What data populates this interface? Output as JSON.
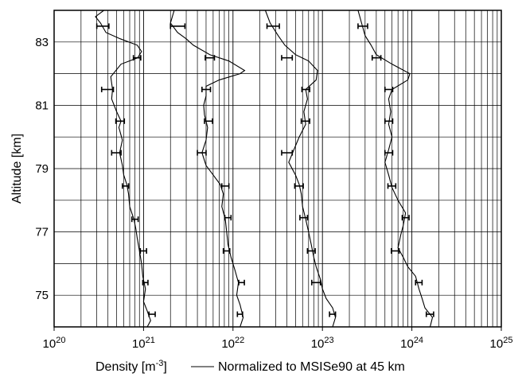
{
  "chart_data": {
    "type": "line",
    "xlabel_main": "Density [m",
    "xlabel_unit_exp": "-3",
    "xlabel_close": "]",
    "legend_label": "Normalized to MSISe90 at 45 km",
    "ylabel": "Altitude [km]",
    "x_scale": "log",
    "xlim": [
      1e+20,
      1e+25
    ],
    "ylim": [
      74,
      84
    ],
    "grid": true,
    "x_ticks": [
      {
        "value": 1e+20,
        "base": "10",
        "exp": "20"
      },
      {
        "value": 1e+21,
        "base": "10",
        "exp": "21"
      },
      {
        "value": 1e+22,
        "base": "10",
        "exp": "22"
      },
      {
        "value": 1e+23,
        "base": "10",
        "exp": "23"
      },
      {
        "value": 1e+24,
        "base": "10",
        "exp": "24"
      },
      {
        "value": 1e+25,
        "base": "10",
        "exp": "25"
      }
    ],
    "y_ticks": [
      {
        "value": 75,
        "label": "75"
      },
      {
        "value": 77,
        "label": "77"
      },
      {
        "value": 79,
        "label": "79"
      },
      {
        "value": 81,
        "label": "81"
      },
      {
        "value": 83,
        "label": "83"
      }
    ],
    "series": [
      {
        "color": "#000000",
        "points": [
          [
            1.1e+21,
            74.0
          ],
          [
            1.2e+21,
            74.2
          ],
          [
            1.1e+21,
            74.5
          ],
          [
            1e+21,
            74.8
          ],
          [
            1.05e+21,
            75.2
          ],
          [
            9.8e+20,
            75.6
          ],
          [
            9.5e+20,
            76.0
          ],
          [
            9e+20,
            76.4
          ],
          [
            8.5e+20,
            76.8
          ],
          [
            8.2e+20,
            77.1
          ],
          [
            7.8e+20,
            77.4
          ],
          [
            7e+20,
            77.8
          ],
          [
            6.8e+20,
            78.2
          ],
          [
            6.5e+20,
            78.5
          ],
          [
            6e+20,
            78.8
          ],
          [
            5.8e+20,
            79.1
          ],
          [
            5.4e+20,
            79.5
          ],
          [
            5.8e+20,
            79.9
          ],
          [
            5.3e+20,
            80.3
          ],
          [
            5.6e+20,
            80.5
          ],
          [
            5e+20,
            80.8
          ],
          [
            4.4e+20,
            81.2
          ],
          [
            4.5e+20,
            81.5
          ],
          [
            4.3e+20,
            81.9
          ],
          [
            5.6e+20,
            82.3
          ],
          [
            8.6e+20,
            82.5
          ],
          [
            9.5e+20,
            82.7
          ],
          [
            8.5e+20,
            82.9
          ],
          [
            5.5e+20,
            83.1
          ],
          [
            3.8e+20,
            83.3
          ],
          [
            3.3e+20,
            83.6
          ],
          [
            2.9e+20,
            83.8
          ],
          [
            3.6e+20,
            84.0
          ]
        ],
        "error_bars": [
          {
            "y": 74.4,
            "x": 1.25e+21,
            "xlo": 1.15e+21,
            "xhi": 1.35e+21
          },
          {
            "y": 75.4,
            "x": 1.05e+21,
            "xlo": 9.8e+20,
            "xhi": 1.12e+21
          },
          {
            "y": 76.4,
            "x": 1e+21,
            "xlo": 9.2e+20,
            "xhi": 1.08e+21
          },
          {
            "y": 77.4,
            "x": 8e+20,
            "xlo": 7.4e+20,
            "xhi": 8.7e+20
          },
          {
            "y": 78.45,
            "x": 6.3e+20,
            "xlo": 5.8e+20,
            "xhi": 6.8e+20
          },
          {
            "y": 79.5,
            "x": 5e+20,
            "xlo": 4.4e+20,
            "xhi": 5.6e+20
          },
          {
            "y": 80.5,
            "x": 5.5e+20,
            "xlo": 4.9e+20,
            "xhi": 6.1e+20
          },
          {
            "y": 81.5,
            "x": 4e+20,
            "xlo": 3.4e+20,
            "xhi": 4.6e+20
          },
          {
            "y": 82.5,
            "x": 8.5e+20,
            "xlo": 7.7e+20,
            "xhi": 9.3e+20
          },
          {
            "y": 83.5,
            "x": 3.5e+20,
            "xlo": 3e+20,
            "xhi": 4.1e+20
          }
        ]
      },
      {
        "color": "#000000",
        "points": [
          [
            1.2e+22,
            74.0
          ],
          [
            1.3e+22,
            74.3
          ],
          [
            1.2e+22,
            74.7
          ],
          [
            1.1e+22,
            75.0
          ],
          [
            1.15e+22,
            75.4
          ],
          [
            1.05e+22,
            75.8
          ],
          [
            9.5e+21,
            76.2
          ],
          [
            8.8e+21,
            76.6
          ],
          [
            8.5e+21,
            77.0
          ],
          [
            8.2e+21,
            77.4
          ],
          [
            7.5e+21,
            77.8
          ],
          [
            7.8e+21,
            78.2
          ],
          [
            7.2e+21,
            78.5
          ],
          [
            6e+21,
            78.8
          ],
          [
            5e+21,
            79.1
          ],
          [
            4.5e+21,
            79.5
          ],
          [
            5e+21,
            79.9
          ],
          [
            5.2e+21,
            80.3
          ],
          [
            4.8e+21,
            80.7
          ],
          [
            4.7e+21,
            81.0
          ],
          [
            5e+21,
            81.3
          ],
          [
            5e+21,
            81.6
          ],
          [
            7e+21,
            81.8
          ],
          [
            1.2e+22,
            82.0
          ],
          [
            1.35e+22,
            82.1
          ],
          [
            9e+21,
            82.4
          ],
          [
            5.5e+21,
            82.6
          ],
          [
            3.6e+21,
            82.9
          ],
          [
            3e+21,
            83.1
          ],
          [
            2.4e+21,
            83.3
          ],
          [
            2e+21,
            83.6
          ],
          [
            2.2e+21,
            84.0
          ]
        ],
        "error_bars": [
          {
            "y": 74.4,
            "x": 1.2e+22,
            "xlo": 1.12e+22,
            "xhi": 1.28e+22
          },
          {
            "y": 75.4,
            "x": 1.25e+22,
            "xlo": 1.16e+22,
            "xhi": 1.34e+22
          },
          {
            "y": 76.4,
            "x": 8.5e+21,
            "xlo": 7.8e+21,
            "xhi": 9.2e+21
          },
          {
            "y": 77.45,
            "x": 8.8e+21,
            "xlo": 8.1e+21,
            "xhi": 9.5e+21
          },
          {
            "y": 78.45,
            "x": 8.2e+21,
            "xlo": 7.5e+21,
            "xhi": 9e+21
          },
          {
            "y": 79.5,
            "x": 4.5e+21,
            "xlo": 4e+21,
            "xhi": 5e+21
          },
          {
            "y": 80.5,
            "x": 5.3e+21,
            "xlo": 4.8e+21,
            "xhi": 5.9e+21
          },
          {
            "y": 81.5,
            "x": 5e+21,
            "xlo": 4.5e+21,
            "xhi": 5.6e+21
          },
          {
            "y": 82.5,
            "x": 5.5e+21,
            "xlo": 4.9e+21,
            "xhi": 6.2e+21
          },
          {
            "y": 83.5,
            "x": 2.4e+21,
            "xlo": 2e+21,
            "xhi": 2.9e+21
          }
        ]
      },
      {
        "color": "#000000",
        "points": [
          [
            1.3e+23,
            74.0
          ],
          [
            1.4e+23,
            74.3
          ],
          [
            1.3e+23,
            74.6
          ],
          [
            1.1e+23,
            74.9
          ],
          [
            1e+23,
            75.2
          ],
          [
            9.5e+22,
            75.5
          ],
          [
            8.5e+22,
            75.9
          ],
          [
            8e+22,
            76.2
          ],
          [
            7.5e+22,
            76.6
          ],
          [
            7e+22,
            77.0
          ],
          [
            6.5e+22,
            77.4
          ],
          [
            6e+22,
            77.8
          ],
          [
            5.8e+22,
            78.2
          ],
          [
            5.5e+22,
            78.5
          ],
          [
            5e+22,
            78.8
          ],
          [
            4.2e+22,
            79.2
          ],
          [
            4.8e+22,
            79.6
          ],
          [
            5.5e+22,
            80.0
          ],
          [
            6.5e+22,
            80.4
          ],
          [
            6.2e+22,
            80.8
          ],
          [
            6.8e+22,
            81.2
          ],
          [
            6.5e+22,
            81.5
          ],
          [
            8.5e+22,
            81.8
          ],
          [
            8.8e+22,
            82.1
          ],
          [
            7e+22,
            82.4
          ],
          [
            5e+22,
            82.6
          ],
          [
            3.8e+22,
            82.9
          ],
          [
            3.2e+22,
            83.2
          ],
          [
            2.6e+22,
            83.6
          ],
          [
            2.3e+22,
            84.0
          ]
        ],
        "error_bars": [
          {
            "y": 74.4,
            "x": 1.3e+23,
            "xlo": 1.2e+23,
            "xhi": 1.4e+23
          },
          {
            "y": 75.4,
            "x": 8.5e+22,
            "xlo": 7.6e+22,
            "xhi": 9.5e+22
          },
          {
            "y": 76.4,
            "x": 7.5e+22,
            "xlo": 6.8e+22,
            "xhi": 8.3e+22
          },
          {
            "y": 77.45,
            "x": 6.2e+22,
            "xlo": 5.6e+22,
            "xhi": 6.8e+22
          },
          {
            "y": 78.45,
            "x": 5.5e+22,
            "xlo": 4.9e+22,
            "xhi": 6.1e+22
          },
          {
            "y": 79.5,
            "x": 4e+22,
            "xlo": 3.5e+22,
            "xhi": 4.6e+22
          },
          {
            "y": 80.5,
            "x": 6.5e+22,
            "xlo": 5.8e+22,
            "xhi": 7.2e+22
          },
          {
            "y": 81.5,
            "x": 6.5e+22,
            "xlo": 5.9e+22,
            "xhi": 7.2e+22
          },
          {
            "y": 82.5,
            "x": 4e+22,
            "xlo": 3.5e+22,
            "xhi": 4.6e+22
          },
          {
            "y": 83.5,
            "x": 2.8e+22,
            "xlo": 2.4e+22,
            "xhi": 3.3e+22
          }
        ]
      },
      {
        "color": "#000000",
        "points": [
          [
            1.6e+24,
            74.0
          ],
          [
            1.7e+24,
            74.3
          ],
          [
            1.4e+24,
            74.6
          ],
          [
            1.3e+24,
            74.9
          ],
          [
            1.2e+24,
            75.2
          ],
          [
            1.1e+24,
            75.6
          ],
          [
            9e+23,
            75.9
          ],
          [
            8e+23,
            76.2
          ],
          [
            7e+23,
            76.5
          ],
          [
            7.5e+23,
            76.9
          ],
          [
            8e+23,
            77.2
          ],
          [
            8.5e+23,
            77.6
          ],
          [
            7e+23,
            78.0
          ],
          [
            6e+23,
            78.4
          ],
          [
            5.5e+23,
            78.8
          ],
          [
            5e+23,
            79.2
          ],
          [
            5.5e+23,
            79.6
          ],
          [
            6e+23,
            80.0
          ],
          [
            5.5e+23,
            80.4
          ],
          [
            5.8e+23,
            80.8
          ],
          [
            5.5e+23,
            81.2
          ],
          [
            6e+23,
            81.5
          ],
          [
            9e+23,
            81.8
          ],
          [
            9.5e+23,
            82.0
          ],
          [
            6e+23,
            82.3
          ],
          [
            4e+23,
            82.6
          ],
          [
            3.5e+23,
            82.9
          ],
          [
            3e+23,
            83.2
          ],
          [
            2.8e+23,
            83.5
          ],
          [
            2.5e+23,
            84.0
          ]
        ],
        "error_bars": [
          {
            "y": 74.4,
            "x": 1.6e+24,
            "xlo": 1.45e+24,
            "xhi": 1.75e+24
          },
          {
            "y": 75.4,
            "x": 1.2e+24,
            "xlo": 1.1e+24,
            "xhi": 1.3e+24
          },
          {
            "y": 76.4,
            "x": 6.5e+23,
            "xlo": 5.9e+23,
            "xhi": 7.2e+23
          },
          {
            "y": 77.45,
            "x": 8.5e+23,
            "xlo": 7.8e+23,
            "xhi": 9.3e+23
          },
          {
            "y": 78.45,
            "x": 6e+23,
            "xlo": 5.4e+23,
            "xhi": 6.6e+23
          },
          {
            "y": 79.5,
            "x": 5.5e+23,
            "xlo": 5e+23,
            "xhi": 6.1e+23
          },
          {
            "y": 80.5,
            "x": 5.5e+23,
            "xlo": 5e+23,
            "xhi": 6.1e+23
          },
          {
            "y": 81.5,
            "x": 5.5e+23,
            "xlo": 5e+23,
            "xhi": 6.1e+23
          },
          {
            "y": 82.5,
            "x": 4e+23,
            "xlo": 3.6e+23,
            "xhi": 4.5e+23
          },
          {
            "y": 83.5,
            "x": 2.8e+23,
            "xlo": 2.5e+23,
            "xhi": 3.2e+23
          }
        ]
      }
    ]
  }
}
